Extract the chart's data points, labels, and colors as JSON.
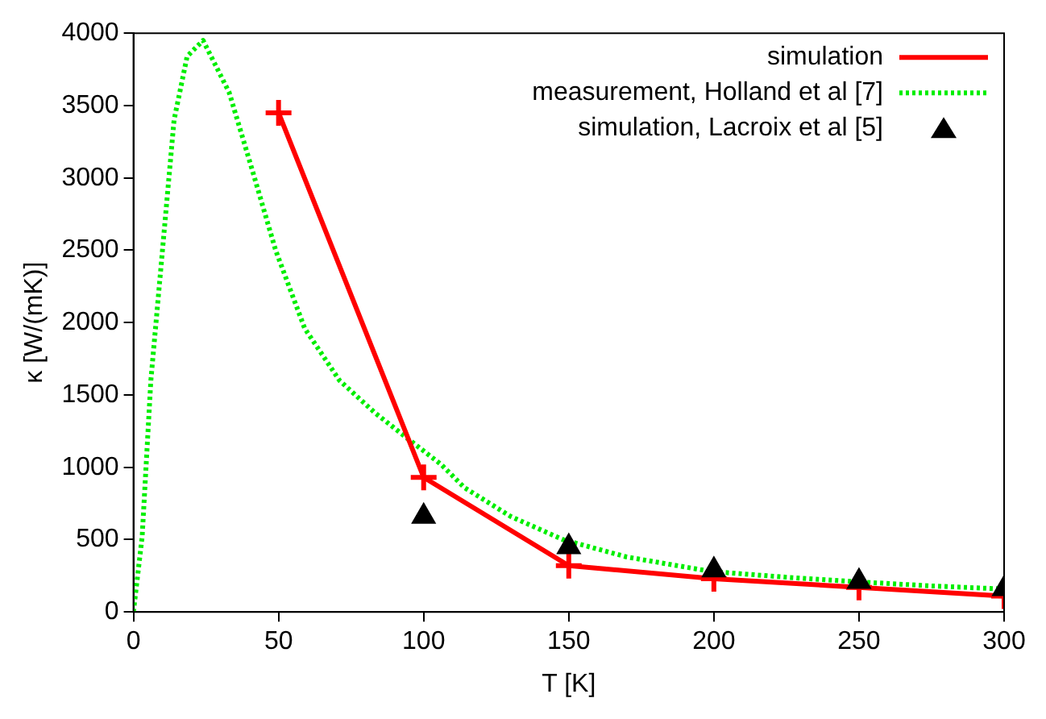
{
  "chart_data": {
    "type": "line",
    "xlabel": "T [K]",
    "ylabel": "κ [W/(mK)]",
    "xlim": [
      0,
      300
    ],
    "xticks": [
      0,
      50,
      100,
      150,
      200,
      250,
      300
    ],
    "ylim": [
      0,
      4000
    ],
    "yticks": [
      0,
      500,
      1000,
      1500,
      2000,
      2500,
      3000,
      3500,
      4000
    ],
    "grid": false,
    "legend": "top right",
    "series": [
      {
        "name": "simulation",
        "color": "#ff0000",
        "marker": "cross",
        "line_style": "solid",
        "x": [
          50,
          100,
          150,
          200,
          250,
          300
        ],
        "values": [
          3450,
          930,
          320,
          230,
          170,
          110
        ]
      },
      {
        "name": "measurement, Holland et al [7]",
        "color": "#00ee00",
        "marker": "none",
        "line_style": "dotted",
        "x": [
          0,
          3,
          6,
          10,
          14,
          18.5,
          24,
          33,
          41,
          49,
          59,
          71,
          83,
          95,
          106,
          114,
          130,
          148,
          170,
          199,
          225,
          248,
          275,
          298
        ],
        "values": [
          0,
          520,
          1600,
          2500,
          3400,
          3840,
          3950,
          3590,
          3050,
          2500,
          1960,
          1600,
          1380,
          1190,
          1020,
          860,
          660,
          500,
          380,
          280,
          240,
          210,
          180,
          160
        ]
      },
      {
        "name": "simulation, Lacroix et al [5]",
        "type": "scatter",
        "color": "#000000",
        "marker": "triangle",
        "x": [
          100,
          150,
          200,
          250,
          300
        ],
        "values": [
          660,
          450,
          290,
          210,
          160
        ]
      }
    ]
  }
}
